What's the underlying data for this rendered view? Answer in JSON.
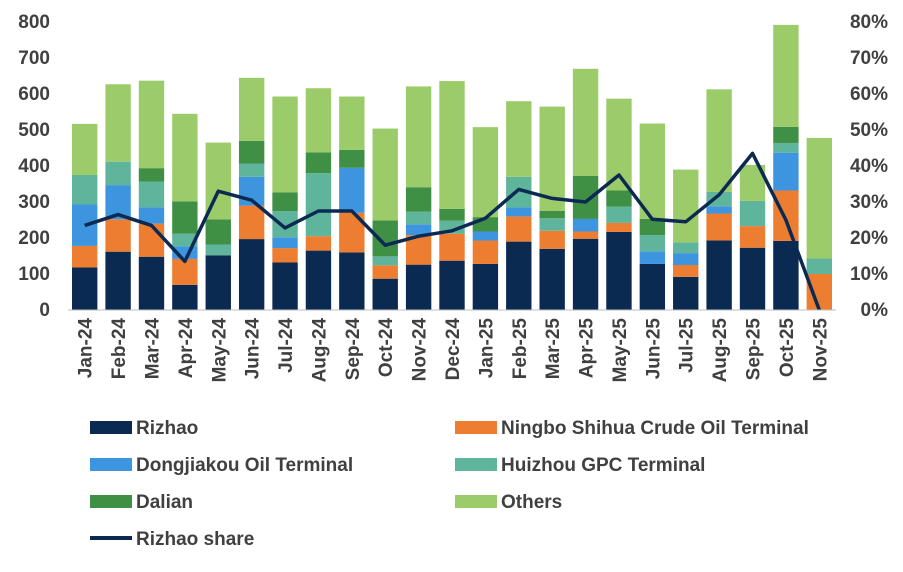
{
  "chart_data": {
    "type": "bar",
    "stacked": true,
    "categories": [
      "Jan-24",
      "Feb-24",
      "Mar-24",
      "Apr-24",
      "May-24",
      "Jun-24",
      "Jul-24",
      "Aug-24",
      "Sep-24",
      "Oct-24",
      "Nov-24",
      "Dec-24",
      "Jan-25",
      "Feb-25",
      "Mar-25",
      "Apr-25",
      "May-25",
      "Jun-25",
      "Jul-25",
      "Aug-25",
      "Sep-25",
      "Oct-25",
      "Nov-25"
    ],
    "ylim": [
      0,
      800
    ],
    "y_ticks": [
      "0",
      "100",
      "200",
      "300",
      "400",
      "500",
      "600",
      "700",
      "800"
    ],
    "y2lim": [
      0,
      80
    ],
    "y2_ticks": [
      "0%",
      "10%",
      "20%",
      "30%",
      "40%",
      "50%",
      "60%",
      "70%",
      "80%"
    ],
    "series": [
      {
        "name": "Rizhao",
        "color": "#0b2a52",
        "values": [
          118,
          162,
          148,
          70,
          152,
          197,
          132,
          165,
          160,
          87,
          126,
          137,
          128,
          190,
          170,
          198,
          217,
          128,
          92,
          193,
          173,
          192,
          0
        ]
      },
      {
        "name": "Ningbo Shihua Crude Oil Terminal",
        "color": "#ed7d31",
        "values": [
          60,
          90,
          92,
          72,
          0,
          93,
          40,
          40,
          110,
          37,
          82,
          75,
          65,
          70,
          50,
          20,
          25,
          0,
          33,
          75,
          60,
          140,
          100
        ]
      },
      {
        "name": "Dongjiakou Oil Terminal",
        "color": "#3d95e0",
        "values": [
          115,
          95,
          45,
          35,
          0,
          80,
          30,
          0,
          125,
          0,
          30,
          0,
          25,
          25,
          0,
          35,
          0,
          35,
          33,
          20,
          0,
          105,
          0
        ]
      },
      {
        "name": "Huizhou GPC Terminal",
        "color": "#5fb49c",
        "values": [
          82,
          65,
          72,
          35,
          30,
          37,
          73,
          175,
          0,
          25,
          35,
          36,
          0,
          85,
          35,
          0,
          45,
          45,
          30,
          40,
          70,
          27,
          43
        ]
      },
      {
        "name": "Dalian",
        "color": "#3f8f44",
        "values": [
          0,
          0,
          37,
          90,
          70,
          63,
          52,
          58,
          50,
          100,
          68,
          33,
          40,
          0,
          20,
          120,
          45,
          45,
          0,
          0,
          0,
          45,
          0
        ]
      },
      {
        "name": "Others",
        "color": "#9ccc6a",
        "values": [
          142,
          215,
          243,
          243,
          213,
          175,
          266,
          178,
          148,
          255,
          280,
          355,
          250,
          210,
          290,
          297,
          255,
          265,
          202,
          285,
          100,
          283,
          335
        ]
      }
    ],
    "line": {
      "name": "Rizhao share",
      "color": "#0b2a52",
      "axis": "right",
      "unit": "%",
      "values": [
        23.5,
        26.5,
        23.5,
        13.5,
        33,
        30.5,
        22.8,
        27.5,
        27.5,
        18,
        20.5,
        22,
        25.5,
        33.5,
        31,
        30,
        37.5,
        25.2,
        24.5,
        32,
        43.5,
        25,
        0
      ]
    },
    "legend_position": "bottom"
  }
}
